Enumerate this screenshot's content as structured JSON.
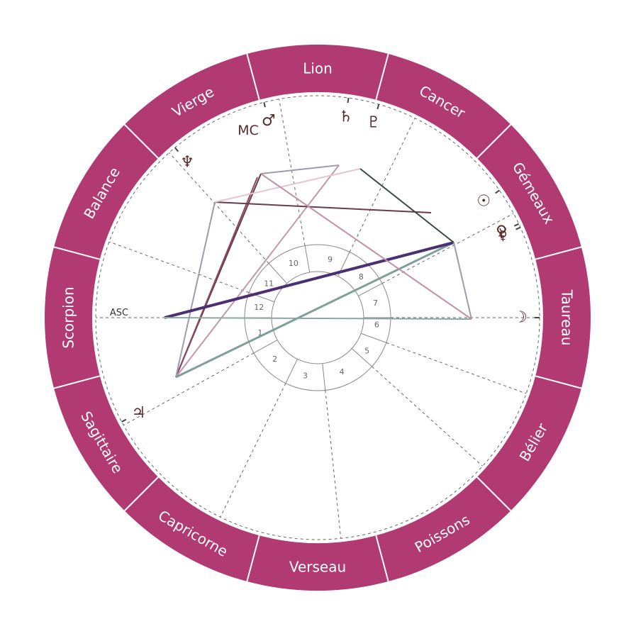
{
  "colors": {
    "ring": "#b23a72",
    "ring_divider": "#ffffff",
    "background": "#ffffff",
    "cusp_line": "#666666",
    "house_ring": "#888888",
    "glyph": "#5a2a2a"
  },
  "zodiac": [
    {
      "name": "Lion",
      "center_deg": 90
    },
    {
      "name": "Vierge",
      "center_deg": 120
    },
    {
      "name": "Balance",
      "center_deg": 150
    },
    {
      "name": "Scorpion",
      "center_deg": 180
    },
    {
      "name": "Sagittaire",
      "center_deg": 210
    },
    {
      "name": "Capricorne",
      "center_deg": 240
    },
    {
      "name": "Verseau",
      "center_deg": 270
    },
    {
      "name": "Poissons",
      "center_deg": 300
    },
    {
      "name": "Bélier",
      "center_deg": 330
    },
    {
      "name": "Taureau",
      "center_deg": 0
    },
    {
      "name": "Gémeaux",
      "center_deg": 30
    },
    {
      "name": "Cancer",
      "center_deg": 60
    }
  ],
  "houses": [
    {
      "num": "1",
      "cusp_deg": 180,
      "label_deg": 195
    },
    {
      "num": "2",
      "cusp_deg": 209,
      "label_deg": 224
    },
    {
      "num": "3",
      "cusp_deg": 244,
      "label_deg": 258
    },
    {
      "num": "4",
      "cusp_deg": 276,
      "label_deg": 294
    },
    {
      "num": "5",
      "cusp_deg": 318,
      "label_deg": 326
    },
    {
      "num": "6",
      "cusp_deg": 340,
      "label_deg": 353
    },
    {
      "num": "7",
      "cusp_deg": 0,
      "label_deg": 14
    },
    {
      "num": "8",
      "cusp_deg": 28,
      "label_deg": 43
    },
    {
      "num": "9",
      "cusp_deg": 64,
      "label_deg": 78
    },
    {
      "num": "10",
      "cusp_deg": 100,
      "label_deg": 114
    },
    {
      "num": "11",
      "cusp_deg": 132,
      "label_deg": 145
    },
    {
      "num": "12",
      "cusp_deg": 160,
      "label_deg": 170
    }
  ],
  "axes": {
    "asc_label": "ASC",
    "mc_label": "MC"
  },
  "planets": [
    {
      "id": "sun",
      "glyph": "☉",
      "icon": "sun-icon",
      "deg": 35
    },
    {
      "id": "moon",
      "glyph": "☽",
      "icon": "moon-icon",
      "deg": 0
    },
    {
      "id": "mercury",
      "glyph": "☿",
      "icon": "mercury-icon",
      "deg": 24
    },
    {
      "id": "venus",
      "glyph": "♀",
      "icon": "venus-icon",
      "deg": 25
    },
    {
      "id": "mars",
      "glyph": "♂",
      "icon": "mars-icon",
      "deg": 104
    },
    {
      "id": "jupiter",
      "glyph": "♃",
      "icon": "jupiter-icon",
      "deg": 208
    },
    {
      "id": "saturn",
      "glyph": "♄",
      "icon": "saturn-icon",
      "deg": 82
    },
    {
      "id": "neptune",
      "glyph": "♆",
      "icon": "neptune-icon",
      "deg": 130
    },
    {
      "id": "pluto",
      "glyph": "♇",
      "icon": "pluto-icon",
      "deg": 74
    }
  ],
  "aspects": [
    {
      "from": [
        248,
        532
      ],
      "to": [
        368,
        245
      ],
      "color": "#6a3a4e",
      "width": 2
    },
    {
      "from": [
        248,
        532
      ],
      "to": [
        363,
        250
      ],
      "color": "#8a4a5e",
      "width": 2
    },
    {
      "from": [
        248,
        532
      ],
      "to": [
        303,
        285
      ],
      "color": "#a09ab0",
      "width": 2
    },
    {
      "from": [
        248,
        532
      ],
      "to": [
        478,
        233
      ],
      "color": "#c09aa8",
      "width": 2
    },
    {
      "from": [
        248,
        532
      ],
      "to": [
        640,
        342
      ],
      "color": "#7fa09a",
      "width": 3
    },
    {
      "from": [
        232,
        448
      ],
      "to": [
        640,
        342
      ],
      "color": "#4a2f73",
      "width": 4
    },
    {
      "from": [
        232,
        448
      ],
      "to": [
        665,
        450
      ],
      "color": "#8aa8a4",
      "width": 2
    },
    {
      "from": [
        303,
        285
      ],
      "to": [
        608,
        300
      ],
      "color": "#6a3a4e",
      "width": 2
    },
    {
      "from": [
        303,
        285
      ],
      "to": [
        508,
        238
      ],
      "color": "#e8c4cc",
      "width": 2
    },
    {
      "from": [
        368,
        245
      ],
      "to": [
        665,
        450
      ],
      "color": "#c090a4",
      "width": 2
    },
    {
      "from": [
        368,
        245
      ],
      "to": [
        478,
        233
      ],
      "color": "#a09ab0",
      "width": 2
    },
    {
      "from": [
        508,
        238
      ],
      "to": [
        640,
        342
      ],
      "color": "#3a4a44",
      "width": 2
    },
    {
      "from": [
        640,
        342
      ],
      "to": [
        665,
        450
      ],
      "color": "#a09ab0",
      "width": 2
    }
  ]
}
